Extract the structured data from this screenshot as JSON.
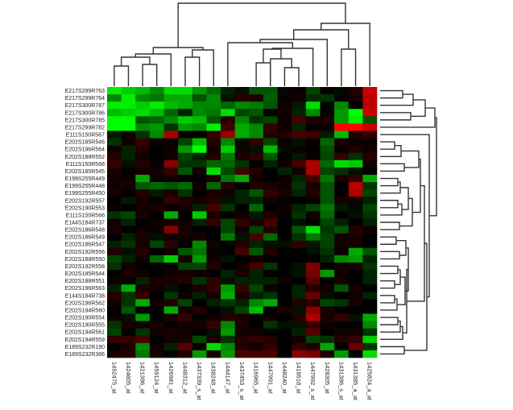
{
  "chart_data": {
    "type": "heatmap",
    "title": "",
    "xlabel": "",
    "ylabel": "",
    "color_scale": {
      "low": "#00ff00",
      "mid": "#000000",
      "high": "#ff0000",
      "range": [
        -3,
        3
      ]
    },
    "columns": [
      "1452475_at",
      "1424605_at",
      "1421386_at",
      "1459124_at",
      "1426981_at",
      "1448312_at",
      "1437339_s_at",
      "1438248_at",
      "1444147_at",
      "1437453_s_at",
      "1416965_at",
      "1447991_at",
      "1448240_at",
      "1418518_at",
      "1447992_s_at",
      "1428305_at",
      "1431386_s_at",
      "1431385_a_at",
      "1425824_a_at"
    ],
    "rows": [
      "E217S299R763",
      "E217S299R764",
      "E217S300R787",
      "E217S300R786",
      "E217S300R785",
      "E217S299R782",
      "E111S150R567",
      "E202S185R546",
      "E202S196R564",
      "E202S188R552",
      "E111S150R568",
      "E202S185R545",
      "E199S255R449",
      "E199S255R448",
      "E199S255R450",
      "E202S192R557",
      "E202S190R553",
      "E111S150R566",
      "E144S184R737",
      "E202S186R548",
      "E202S186R549",
      "E202S186R547",
      "E202S192R556",
      "E202S188R550",
      "E202S192R558",
      "E202S185R544",
      "E202S188R551",
      "E202S196R563",
      "E144S184R738",
      "E202S196R562",
      "E202S194R560",
      "E202S190R554",
      "E202S190R555",
      "E202S194R561",
      "E202S194R559",
      "E189S232R190",
      "E189S232R386"
    ],
    "values": [
      [
        -2.8,
        -2.4,
        -2.2,
        -1.6,
        -2.6,
        -2.6,
        -1.8,
        -1.2,
        -0.4,
        -0.2,
        -1.0,
        -1.0,
        -0.1,
        0.1,
        -0.8,
        0.1,
        -0.1,
        0.4,
        2.4
      ],
      [
        -1.6,
        -2.8,
        -1.6,
        -1.4,
        -2.0,
        -2.0,
        -1.0,
        -1.6,
        -0.2,
        0.4,
        0.3,
        -1.1,
        0.1,
        0.2,
        -0.5,
        -0.6,
        0.0,
        0.3,
        2.2
      ],
      [
        -2.8,
        -2.8,
        -2.4,
        -2.8,
        -2.2,
        -2.0,
        -1.6,
        -1.6,
        -1.2,
        -1.6,
        -1.4,
        -1.0,
        0.2,
        -0.3,
        -2.6,
        0.0,
        -1.6,
        0.0,
        2.2
      ],
      [
        -2.2,
        -2.4,
        -2.6,
        -2.2,
        -1.2,
        -0.4,
        -1.6,
        -1.4,
        -2.6,
        -0.8,
        -1.0,
        0.1,
        0.2,
        -0.4,
        -1.6,
        0.0,
        -1.8,
        -3.0,
        2.4
      ],
      [
        -3.0,
        -3.0,
        -1.0,
        -1.2,
        -1.6,
        -2.4,
        -2.2,
        -1.0,
        0.4,
        -1.6,
        -0.6,
        -0.8,
        0.1,
        0.8,
        0.3,
        0.3,
        -1.8,
        -2.8,
        -1.0
      ],
      [
        -3.0,
        -3.0,
        -1.6,
        -1.8,
        -0.6,
        -1.8,
        -1.6,
        -2.8,
        0.8,
        -2.0,
        -1.6,
        0.6,
        0.2,
        -0.4,
        0.1,
        0.1,
        3.0,
        3.0,
        2.4
      ],
      [
        -0.3,
        0.1,
        -0.6,
        -1.6,
        2.0,
        0.1,
        0.1,
        0.6,
        1.8,
        -2.0,
        -1.6,
        0.4,
        0.4,
        0.8,
        0.7,
        -0.3,
        -2.2,
        0.4,
        0.6
      ],
      [
        -0.6,
        0.2,
        0.6,
        0.1,
        0.1,
        -0.8,
        -2.2,
        0.4,
        -1.6,
        -0.1,
        0.6,
        -0.8,
        0.1,
        -0.2,
        0.1,
        -1.2,
        0.3,
        0.1,
        0.1
      ],
      [
        0.2,
        -0.4,
        0.4,
        0.0,
        0.1,
        -1.8,
        -3.0,
        0.2,
        -2.4,
        0.2,
        -0.2,
        -2.2,
        -0.1,
        0.1,
        0.0,
        -0.9,
        0.1,
        0.4,
        0.2
      ],
      [
        0.4,
        -0.4,
        0.2,
        0.0,
        0.2,
        -0.8,
        -0.4,
        0.4,
        -1.4,
        0.3,
        0.5,
        -1.0,
        0.0,
        -0.3,
        0.1,
        -0.8,
        0.6,
        -0.6,
        0.4
      ],
      [
        0.6,
        -0.2,
        0.4,
        0.1,
        1.6,
        -0.6,
        -0.6,
        -1.2,
        -1.2,
        -0.6,
        0.0,
        -0.4,
        0.2,
        0.8,
        2.0,
        -1.2,
        -2.6,
        -2.4,
        0.2
      ],
      [
        0.3,
        0.0,
        0.3,
        0.2,
        0.6,
        -1.0,
        0.2,
        -2.6,
        -0.8,
        0.8,
        0.4,
        0.0,
        -0.4,
        0.2,
        2.0,
        -0.8,
        -0.6,
        -0.2,
        0.0
      ],
      [
        0.2,
        0.1,
        -2.0,
        0.1,
        0.2,
        0.0,
        0.0,
        0.3,
        -1.4,
        -2.0,
        0.2,
        0.0,
        0.1,
        -0.4,
        0.8,
        -1.4,
        0.3,
        0.6,
        -2.0
      ],
      [
        0.2,
        0.2,
        -1.0,
        -1.2,
        -1.0,
        -1.2,
        0.2,
        -1.2,
        0.4,
        0.0,
        0.4,
        0.3,
        0.2,
        -0.6,
        0.3,
        -1.0,
        0.0,
        2.2,
        -0.6
      ],
      [
        0.3,
        0.0,
        0.4,
        -0.3,
        0.3,
        -0.6,
        0.0,
        0.3,
        0.2,
        -0.4,
        -1.0,
        0.6,
        0.3,
        -0.4,
        0.4,
        -1.0,
        0.0,
        2.0,
        -0.8
      ],
      [
        0.0,
        -0.3,
        0.3,
        0.1,
        0.6,
        0.4,
        0.2,
        0.4,
        -0.2,
        -0.4,
        -0.4,
        0.2,
        0.1,
        0.0,
        0.1,
        -1.0,
        0.3,
        0.2,
        -0.4
      ],
      [
        0.1,
        0.0,
        0.2,
        0.3,
        0.1,
        0.2,
        -0.4,
        0.8,
        -0.6,
        0.0,
        -1.2,
        0.0,
        0.2,
        -0.4,
        -0.8,
        -1.4,
        -0.3,
        -0.1,
        -0.8
      ],
      [
        -0.6,
        -0.8,
        0.3,
        0.0,
        -2.0,
        0.0,
        -2.4,
        0.3,
        0.1,
        0.2,
        -0.3,
        0.4,
        0.1,
        -0.6,
        0.2,
        -1.2,
        0.0,
        -0.2,
        -0.6
      ],
      [
        0.2,
        -0.4,
        0.0,
        0.2,
        0.3,
        0.2,
        -0.4,
        0.6,
        -0.8,
        0.6,
        0.3,
        0.8,
        0.0,
        -0.2,
        0.0,
        -0.8,
        -0.4,
        0.0,
        -0.4
      ],
      [
        0.3,
        0.0,
        0.2,
        0.1,
        1.6,
        0.3,
        0.0,
        0.0,
        -0.8,
        0.2,
        -0.8,
        0.4,
        0.0,
        -1.0,
        -2.6,
        -0.6,
        -1.0,
        0.4,
        0.2
      ],
      [
        0.0,
        -0.4,
        0.3,
        -0.2,
        0.2,
        0.2,
        0.3,
        0.0,
        -1.4,
        -0.2,
        0.8,
        -1.2,
        0.0,
        -0.6,
        -1.4,
        -0.8,
        0.2,
        0.3,
        0.0
      ],
      [
        -0.4,
        -0.6,
        0.3,
        -0.8,
        0.5,
        0.0,
        -1.6,
        0.2,
        0.0,
        0.4,
        -0.4,
        -0.2,
        -0.2,
        0.6,
        -0.3,
        -0.8,
        0.2,
        0.3,
        0.0
      ],
      [
        0.4,
        -0.2,
        0.4,
        0.0,
        0.2,
        -1.0,
        -1.4,
        0.1,
        0.0,
        0.8,
        -1.0,
        0.4,
        0.0,
        0.0,
        -0.2,
        -0.6,
        0.1,
        -2.0,
        -1.0
      ],
      [
        -0.8,
        -0.4,
        0.2,
        -1.2,
        -2.4,
        0.3,
        -1.8,
        0.2,
        -0.2,
        0.0,
        0.2,
        0.0,
        0.0,
        0.0,
        0.0,
        -0.4,
        -1.6,
        -1.8,
        -0.4
      ],
      [
        -0.6,
        0.2,
        0.0,
        0.1,
        0.0,
        -0.8,
        -0.8,
        0.4,
        0.0,
        0.2,
        0.8,
        -0.6,
        0.0,
        -0.2,
        1.4,
        0.0,
        0.2,
        0.3,
        -0.6
      ],
      [
        0.0,
        0.3,
        0.2,
        0.0,
        0.2,
        0.3,
        0.2,
        0.0,
        -0.4,
        0.3,
        -0.4,
        0.0,
        0.0,
        -0.2,
        1.4,
        -1.8,
        0.2,
        0.0,
        -0.4
      ],
      [
        0.2,
        0.0,
        -0.4,
        0.3,
        0.3,
        0.4,
        -0.6,
        0.5,
        -0.2,
        -0.4,
        -0.4,
        -0.4,
        0.2,
        0.0,
        1.0,
        0.0,
        0.3,
        0.0,
        -0.4
      ],
      [
        -0.4,
        -2.0,
        0.3,
        0.2,
        -0.2,
        0.0,
        0.3,
        0.6,
        -1.8,
        0.6,
        -0.8,
        0.2,
        0.0,
        -0.4,
        0.4,
        0.2,
        -1.0,
        0.2,
        0.0
      ],
      [
        0.4,
        -0.6,
        0.6,
        0.0,
        -0.6,
        0.2,
        -0.4,
        0.2,
        -2.0,
        0.3,
        -0.4,
        -0.6,
        0.0,
        -0.4,
        1.2,
        -0.2,
        0.0,
        0.2,
        -0.4
      ],
      [
        0.2,
        -0.6,
        -2.0,
        0.2,
        0.4,
        -0.8,
        0.0,
        -0.4,
        -0.6,
        -0.4,
        -1.6,
        -2.0,
        0.0,
        0.4,
        0.4,
        -0.8,
        -0.6,
        0.3,
        0.0
      ],
      [
        0.0,
        -1.0,
        0.0,
        0.0,
        -2.0,
        0.2,
        0.4,
        0.0,
        -0.2,
        -0.8,
        -2.2,
        0.0,
        0.3,
        -0.2,
        1.6,
        0.3,
        0.0,
        0.0,
        0.0
      ],
      [
        0.2,
        -0.2,
        -1.8,
        0.0,
        0.3,
        0.6,
        0.0,
        0.2,
        0.4,
        0.3,
        0.0,
        0.2,
        0.0,
        0.4,
        2.0,
        0.3,
        0.6,
        -0.2,
        -2.0
      ],
      [
        -0.6,
        0.3,
        0.2,
        0.3,
        0.0,
        0.2,
        0.3,
        0.6,
        -1.6,
        0.3,
        0.0,
        -0.6,
        -0.2,
        -0.2,
        0.6,
        0.2,
        0.0,
        0.0,
        -1.6
      ],
      [
        -0.8,
        0.0,
        -0.6,
        0.2,
        0.3,
        0.2,
        0.0,
        -0.2,
        -1.8,
        0.2,
        0.2,
        0.0,
        0.0,
        -0.4,
        1.0,
        0.0,
        0.2,
        0.2,
        -0.6
      ],
      [
        0.6,
        0.6,
        0.8,
        0.0,
        0.2,
        0.3,
        -0.8,
        0.3,
        -0.6,
        0.4,
        0.6,
        0.4,
        0.0,
        0.2,
        -0.8,
        -0.6,
        0.4,
        0.6,
        -2.4
      ],
      [
        0.0,
        0.3,
        -1.6,
        0.2,
        -0.4,
        1.0,
        0.2,
        -2.6,
        -1.6,
        0.4,
        0.2,
        0.6,
        0.0,
        0.6,
        0.4,
        -2.0,
        0.0,
        1.2,
        -0.6
      ],
      [
        0.3,
        0.4,
        -1.4,
        0.3,
        0.0,
        0.4,
        -1.8,
        0.3,
        -1.8,
        0.8,
        0.8,
        0.8,
        0.0,
        1.6,
        1.4,
        0.4,
        -1.8,
        0.0,
        -2.6
      ]
    ],
    "grid": false,
    "legend": "none"
  }
}
